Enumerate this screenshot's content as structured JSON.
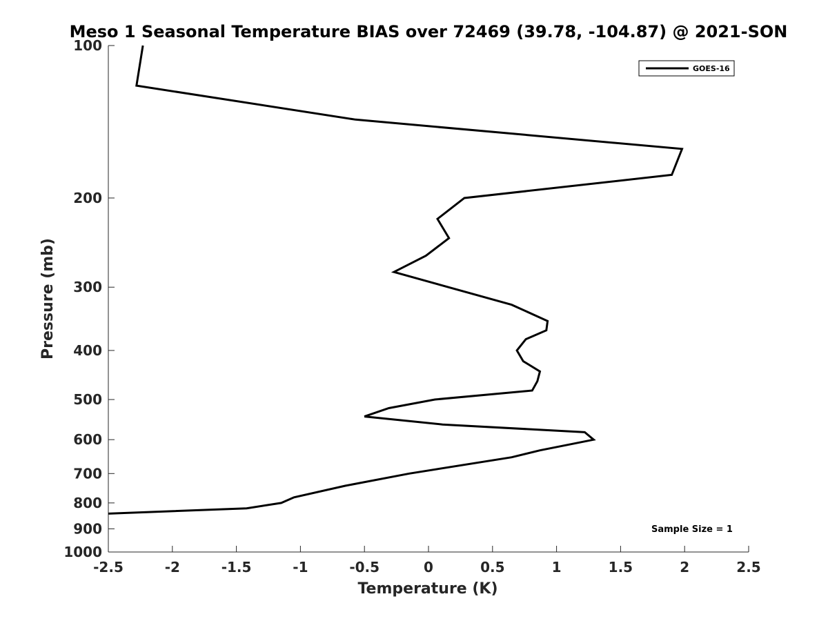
{
  "chart_data": {
    "type": "line",
    "title": "Meso 1 Seasonal Temperature BIAS over 72469 (39.78, -104.87) @ 2021-SON",
    "xlabel": "Temperature (K)",
    "ylabel": "Pressure (mb)",
    "xlim": [
      -2.5,
      2.5
    ],
    "ylim": [
      1000,
      100
    ],
    "y_scale": "log",
    "y_reversed": true,
    "grid": false,
    "legend_position": "top-right",
    "x_ticks": [
      -2.5,
      -2,
      -1.5,
      -1,
      -0.5,
      0,
      0.5,
      1,
      1.5,
      2,
      2.5
    ],
    "x_tick_labels": [
      "-2.5",
      "-2",
      "-1.5",
      "-1",
      "-0.5",
      "0",
      "0.5",
      "1",
      "1.5",
      "2",
      "2.5"
    ],
    "y_ticks": [
      100,
      200,
      300,
      400,
      500,
      600,
      700,
      800,
      900,
      1000
    ],
    "y_tick_labels": [
      "100",
      "200",
      "300",
      "400",
      "500",
      "600",
      "700",
      "800",
      "900",
      "1000"
    ],
    "series": [
      {
        "name": "GOES-16",
        "color": "#000000",
        "points": [
          {
            "x": -2.23,
            "y": 100
          },
          {
            "x": -2.28,
            "y": 120
          },
          {
            "x": -0.57,
            "y": 140
          },
          {
            "x": 1.98,
            "y": 160
          },
          {
            "x": 1.9,
            "y": 180
          },
          {
            "x": 0.28,
            "y": 200
          },
          {
            "x": 0.07,
            "y": 220
          },
          {
            "x": 0.16,
            "y": 240
          },
          {
            "x": -0.02,
            "y": 260
          },
          {
            "x": -0.27,
            "y": 280
          },
          {
            "x": 0.65,
            "y": 325
          },
          {
            "x": 0.93,
            "y": 350
          },
          {
            "x": 0.92,
            "y": 365
          },
          {
            "x": 0.76,
            "y": 380
          },
          {
            "x": 0.69,
            "y": 400
          },
          {
            "x": 0.74,
            "y": 420
          },
          {
            "x": 0.87,
            "y": 440
          },
          {
            "x": 0.85,
            "y": 460
          },
          {
            "x": 0.81,
            "y": 480
          },
          {
            "x": 0.05,
            "y": 500
          },
          {
            "x": -0.31,
            "y": 520
          },
          {
            "x": -0.5,
            "y": 540
          },
          {
            "x": 0.11,
            "y": 560
          },
          {
            "x": 1.22,
            "y": 580
          },
          {
            "x": 1.29,
            "y": 600
          },
          {
            "x": 0.87,
            "y": 630
          },
          {
            "x": 0.65,
            "y": 650
          },
          {
            "x": -0.15,
            "y": 700
          },
          {
            "x": -0.65,
            "y": 740
          },
          {
            "x": -1.05,
            "y": 780
          },
          {
            "x": -1.15,
            "y": 800
          },
          {
            "x": -1.42,
            "y": 820
          },
          {
            "x": -2.5,
            "y": 840
          }
        ]
      }
    ],
    "legend": [
      "GOES-16"
    ],
    "annotation": "Sample Size = 1"
  }
}
